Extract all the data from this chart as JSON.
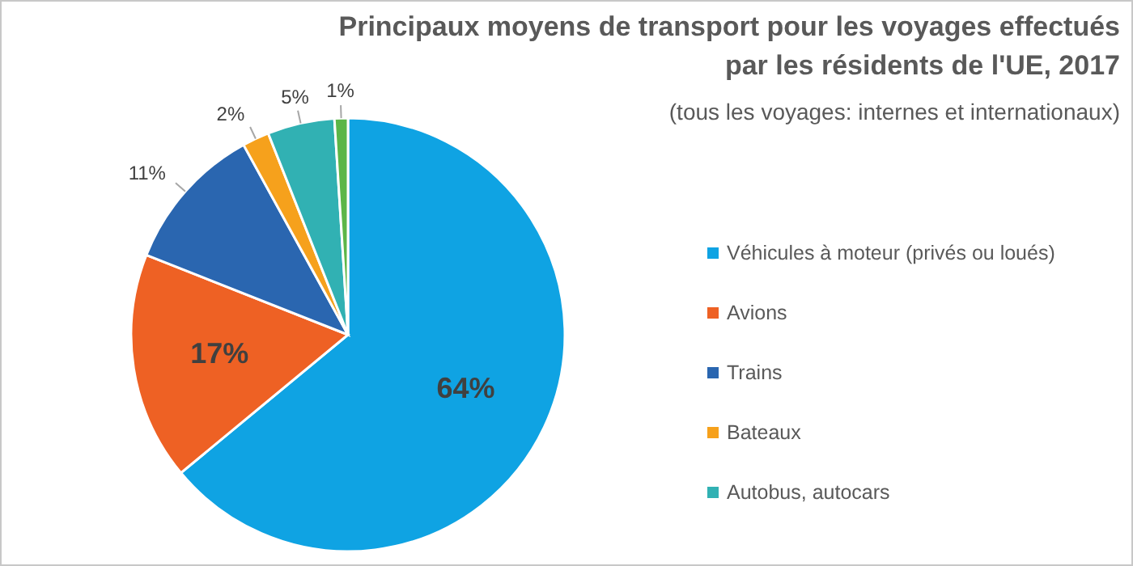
{
  "chart_data": {
    "type": "pie",
    "title": "Principaux moyens de transport pour les voyages effectués par les résidents de l'UE, 2017",
    "subtitle": "(tous les voyages: internes et internationaux)",
    "categories": [
      "Véhicules à moteur (privés ou loués)",
      "Avions",
      "Trains",
      "Bateaux",
      "Autobus, autocars",
      null
    ],
    "values": [
      64,
      17,
      11,
      2,
      5,
      1
    ],
    "colors": [
      "#0fa3e3",
      "#ee6124",
      "#2a66b0",
      "#f6a11c",
      "#31b1b3",
      "#5cb648"
    ],
    "value_labels": [
      "64%",
      "17%",
      "11%",
      "2%",
      "5%",
      "1%"
    ],
    "legend": "right"
  }
}
